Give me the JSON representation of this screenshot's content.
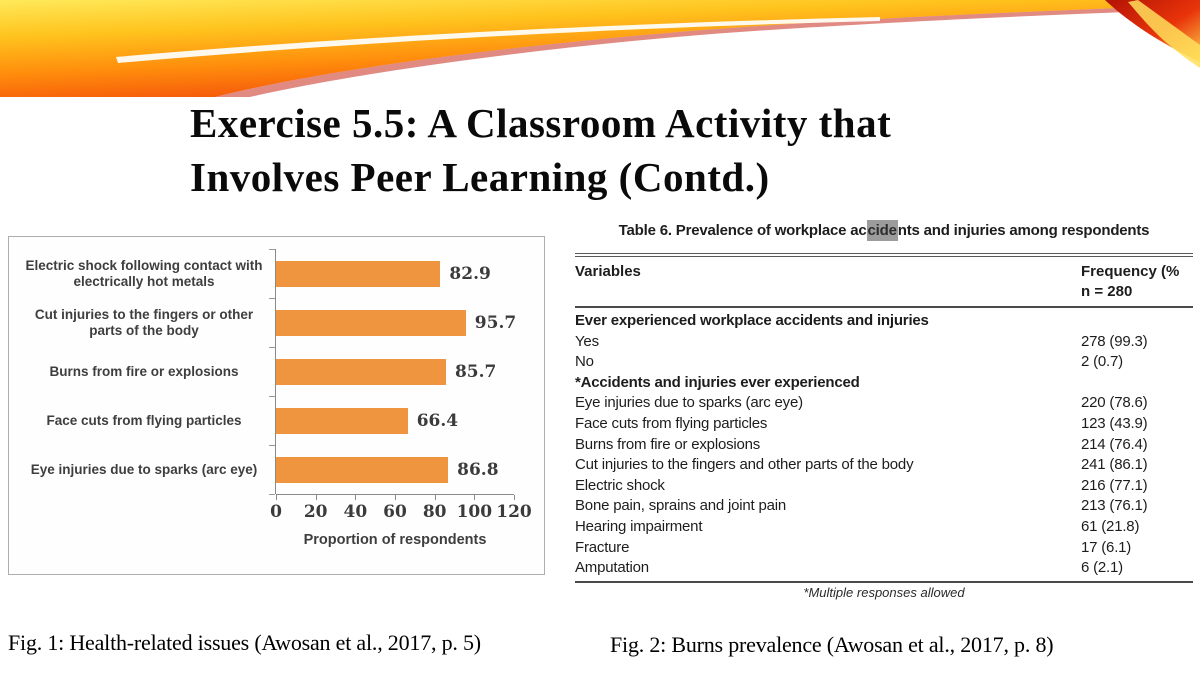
{
  "slide": {
    "title_line1": "Exercise 5.5: A Classroom Activity that",
    "title_line2": "Involves Peer Learning (Contd.)"
  },
  "chart_data": {
    "type": "bar",
    "orientation": "horizontal",
    "categories": [
      "Electric shock following contact with electrically hot metals",
      "Cut injuries to the fingers or other parts of the body",
      "Burns from fire or explosions",
      "Face cuts from flying particles",
      "Eye injuries due to sparks (arc eye)"
    ],
    "values": [
      82.9,
      95.7,
      85.7,
      66.4,
      86.8
    ],
    "value_labels": [
      "82.9",
      "95.7",
      "85.7",
      "66.4",
      "86.8"
    ],
    "xlabel": "Proportion of respondents",
    "xlim": [
      0,
      120
    ],
    "xticks": [
      0,
      20,
      40,
      60,
      80,
      100,
      120
    ],
    "bar_color": "#F0953F",
    "legend": "none",
    "grid": false
  },
  "table": {
    "title_pre": "Table 6. Prevalence of workplace ac",
    "title_highlight": "cide",
    "title_post": "nts and injuries among respondents",
    "header": {
      "col1": "Variables",
      "col2_line1": "Frequency (%",
      "col2_line2": "n = 280"
    },
    "rows": [
      {
        "label": "Ever experienced workplace accidents and injuries",
        "value": "",
        "bold": true
      },
      {
        "label": "Yes",
        "value": "278 (99.3)",
        "bold": false
      },
      {
        "label": "No",
        "value": "2 (0.7)",
        "bold": false
      },
      {
        "label": "*Accidents and injuries ever experienced",
        "value": "",
        "bold": true
      },
      {
        "label": "Eye injuries due to sparks (arc eye)",
        "value": "220 (78.6)",
        "bold": false
      },
      {
        "label": "Face cuts from flying particles",
        "value": "123 (43.9)",
        "bold": false
      },
      {
        "label": "Burns from fire or explosions",
        "value": "214 (76.4)",
        "bold": false
      },
      {
        "label": "Cut injuries to the fingers and other parts of the body",
        "value": "241 (86.1)",
        "bold": false
      },
      {
        "label": "Electric shock",
        "value": "216 (77.1)",
        "bold": false
      },
      {
        "label": "Bone pain, sprains and joint pain",
        "value": "213 (76.1)",
        "bold": false
      },
      {
        "label": "Hearing impairment",
        "value": "61 (21.8)",
        "bold": false
      },
      {
        "label": "Fracture",
        "value": "17 (6.1)",
        "bold": false
      },
      {
        "label": "Amputation",
        "value": "6 (2.1)",
        "bold": false
      }
    ],
    "footnote": "*Multiple responses allowed"
  },
  "captions": {
    "fig1": "Fig. 1: Health-related issues (Awosan et al., 2017, p. 5)",
    "fig2": "Fig. 2: Burns prevalence (Awosan et al., 2017, p. 8)"
  },
  "colors": {
    "bar": "#F0953F",
    "highlight_bg": "#9C9C9C",
    "accent_red": "#D81E05",
    "accent_orange": "#FF8D0C",
    "accent_yellow": "#FFE14D"
  }
}
